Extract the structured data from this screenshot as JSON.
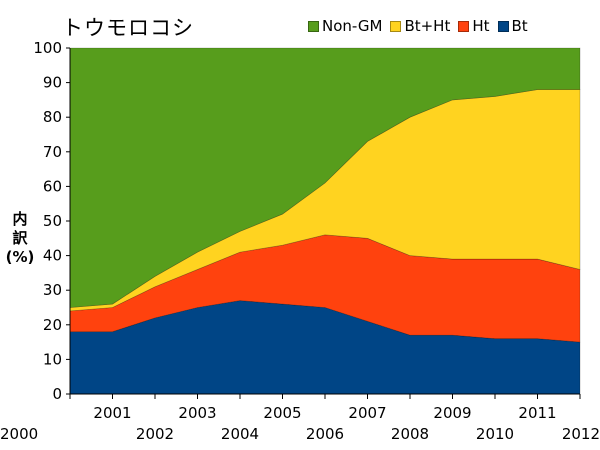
{
  "chart_data": {
    "type": "area",
    "stacked": true,
    "title": "トウモロコシ",
    "ylabel": "内訳(%)",
    "xlabel": "",
    "x": [
      2000,
      2001,
      2002,
      2003,
      2004,
      2005,
      2006,
      2007,
      2008,
      2009,
      2010,
      2011,
      2012
    ],
    "x_tick_labels_top": [
      "2001",
      "2003",
      "2005",
      "2007",
      "2009",
      "2011"
    ],
    "x_tick_labels_bottom": [
      "2000",
      "2002",
      "2004",
      "2006",
      "2008",
      "2010",
      "2012"
    ],
    "ylim": [
      0,
      100
    ],
    "yticks": [
      0,
      10,
      20,
      30,
      40,
      50,
      60,
      70,
      80,
      90,
      100
    ],
    "grid": false,
    "legend_position": "top-right",
    "series": [
      {
        "name": "Bt",
        "color": "#004586",
        "values": [
          18,
          18,
          22,
          25,
          27,
          26,
          25,
          21,
          17,
          17,
          16,
          16,
          15
        ]
      },
      {
        "name": "Ht",
        "color": "#ff420e",
        "values": [
          6,
          7,
          9,
          11,
          14,
          17,
          21,
          24,
          23,
          22,
          23,
          23,
          21
        ]
      },
      {
        "name": "Bt+Ht",
        "color": "#ffd320",
        "values": [
          1,
          1,
          3,
          5,
          6,
          9,
          15,
          28,
          40,
          46,
          47,
          49,
          52
        ]
      },
      {
        "name": "Non-GM",
        "color": "#579d1c",
        "values": [
          75,
          74,
          66,
          59,
          53,
          48,
          39,
          27,
          20,
          15,
          14,
          12,
          12
        ]
      }
    ],
    "legend_order": [
      "Non-GM",
      "Bt+Ht",
      "Ht",
      "Bt"
    ]
  }
}
